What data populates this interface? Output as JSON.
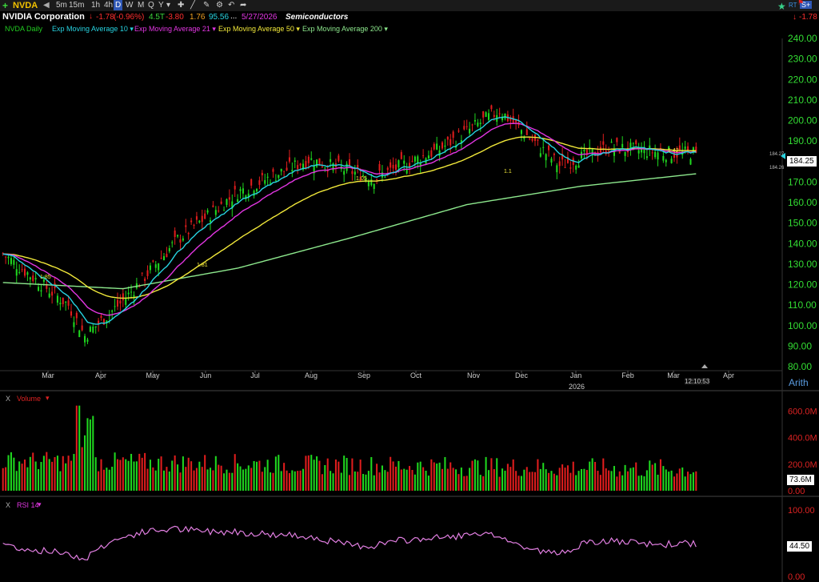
{
  "toolbar": {
    "symbol": "NVDA",
    "timeframes": [
      "5m",
      "15m",
      "1h",
      "4h",
      "D",
      "W",
      "M",
      "Q",
      "Y"
    ],
    "active_timeframe": "D",
    "right_badges": [
      "RT",
      "S+"
    ],
    "right_change": "-1.78"
  },
  "header": {
    "company": "NVIDIA Corporation",
    "change": "-1.78",
    "change_pct": "(-0.96%)",
    "volume": "4.5T",
    "stat1": "-3.80",
    "stat2": "1.76",
    "stat3": "95.56",
    "ellipsis": "...",
    "date": "5/27/2026",
    "sector": "Semiconductors"
  },
  "legend": [
    {
      "label": "NVDA Daily",
      "color": "#22cc22"
    },
    {
      "label": "Exp Moving Average 10",
      "color": "#27d3e0"
    },
    {
      "label": "Exp Moving Average 21",
      "color": "#e236e2"
    },
    {
      "label": "Exp Moving Average 50",
      "color": "#f1e83a"
    },
    {
      "label": "Exp Moving Average 200",
      "color": "#8de88d"
    }
  ],
  "colors": {
    "up": "#1fd81f",
    "down": "#e01d1d",
    "grid": "#1a1a1a",
    "axis_price": "#33dd33",
    "axis_volume": "#dd2222",
    "axis_rsi": "#dd2222"
  },
  "price_axis": {
    "labels": [
      "240.00",
      "230.00",
      "220.00",
      "210.00",
      "200.00",
      "190.00",
      "180.00",
      "170.00",
      "160.00",
      "150.00",
      "140.00",
      "130.00",
      "120.00",
      "110.00",
      "100.00",
      "90.00",
      "80.00"
    ],
    "current_price": "184.25",
    "hi_label": "184.27",
    "lo_label": "184.26",
    "scale": "Arith"
  },
  "time_axis": {
    "months": [
      "Mar",
      "Apr",
      "May",
      "Jun",
      "Jul",
      "Aug",
      "Sep",
      "Oct",
      "Nov",
      "Dec",
      "Jan",
      "Feb",
      "Mar",
      "Apr"
    ],
    "year": "2026",
    "clock": "12:10:53"
  },
  "annotations": [
    "1.85",
    "1.81",
    "1.81",
    "1.05",
    "1.1",
    "1.42"
  ],
  "volume_pane": {
    "close_icon": "X",
    "label": "Volume",
    "axis": [
      "600.0M",
      "400.0M",
      "200.0M",
      "0.00"
    ],
    "current": "73.6M"
  },
  "rsi_pane": {
    "close_icon": "X",
    "label": "RSI 14",
    "axis": [
      "100.00",
      "0.00"
    ],
    "current": "44.50"
  },
  "chart_data": {
    "type": "candlestick",
    "title": "NVIDIA Corporation",
    "series_names": [
      "NVDA Daily",
      "Exp Moving Average 10",
      "Exp Moving Average 21",
      "Exp Moving Average 50",
      "Exp Moving Average 200"
    ],
    "ylim": [
      80,
      240
    ],
    "months": [
      "Mar",
      "Apr",
      "May",
      "Jun",
      "Jul",
      "Aug",
      "Sep",
      "Oct",
      "Nov",
      "Dec",
      "Jan",
      "Feb",
      "Mar",
      "Apr"
    ],
    "close_keypoints": [
      {
        "month": "Mar",
        "close": 135
      },
      {
        "month": "Apr (early)",
        "close": 110
      },
      {
        "month": "Apr (low)",
        "close": 95
      },
      {
        "month": "May",
        "close": 112
      },
      {
        "month": "Jun",
        "close": 142
      },
      {
        "month": "Jul",
        "close": 165
      },
      {
        "month": "Aug",
        "close": 181
      },
      {
        "month": "Sep",
        "close": 172
      },
      {
        "month": "Oct",
        "close": 186
      },
      {
        "month": "Nov",
        "close": 205
      },
      {
        "month": "Dec",
        "close": 178
      },
      {
        "month": "Jan",
        "close": 187
      },
      {
        "month": "Feb",
        "close": 184
      },
      {
        "month": "Mar",
        "close": 184.25
      }
    ],
    "ema200_keypoints": [
      {
        "month": "Mar",
        "value": 121
      },
      {
        "month": "May",
        "value": 118
      },
      {
        "month": "Jul",
        "value": 128
      },
      {
        "month": "Sep",
        "value": 143
      },
      {
        "month": "Nov",
        "value": 159
      },
      {
        "month": "Jan",
        "value": 168
      },
      {
        "month": "Mar",
        "value": 174
      }
    ],
    "volume_range_millions": [
      0,
      650
    ],
    "rsi_range": [
      0,
      100
    ],
    "rsi_last": 44.5
  }
}
